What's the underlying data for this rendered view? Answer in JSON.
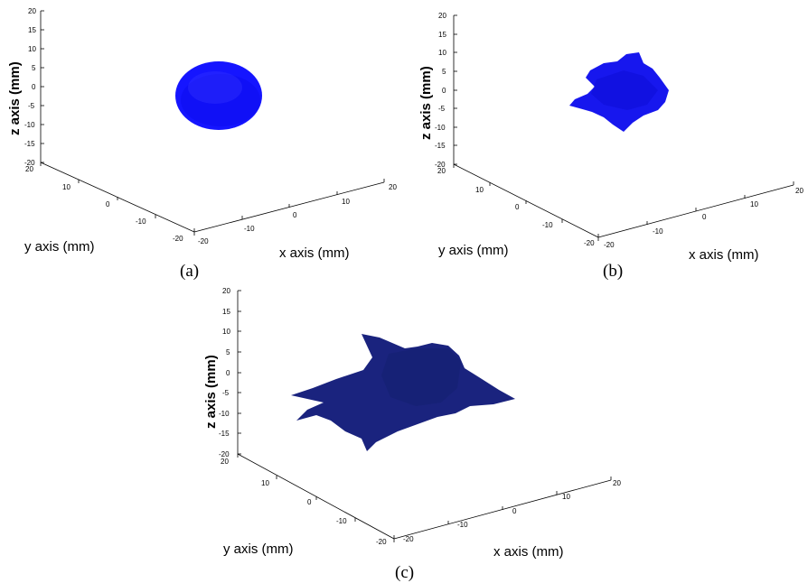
{
  "colors": {
    "panel_a": "#1515ff",
    "panel_b": "#1717ee",
    "panel_c": "#1a237e"
  },
  "chart_data": [
    {
      "type": "scatter",
      "projection": "3d",
      "caption": "(a)",
      "shape": "sphere",
      "marker_color": "#1515ff",
      "xlabel": "x axis (mm)",
      "ylabel": "y axis (mm)",
      "zlabel": "z axis (mm)",
      "xlim": [
        -20,
        20
      ],
      "ylim": [
        -20,
        20
      ],
      "zlim": [
        -20,
        20
      ],
      "xticks": [
        "-20",
        "-10",
        "0",
        "10",
        "20"
      ],
      "yticks": [
        "-20",
        "-10",
        "0",
        "10",
        "20"
      ],
      "zticks": [
        "-20",
        "-15",
        "-10",
        "-5",
        "0",
        "5",
        "10",
        "15",
        "20"
      ],
      "grid": false
    },
    {
      "type": "scatter",
      "projection": "3d",
      "caption": "(b)",
      "shape": "star-shaped point cloud",
      "marker_color": "#1717ee",
      "xlabel": "x axis (mm)",
      "ylabel": "y axis (mm)",
      "zlabel": "z axis (mm)",
      "xlim": [
        -20,
        20
      ],
      "ylim": [
        -20,
        20
      ],
      "zlim": [
        -20,
        20
      ],
      "xticks": [
        "-20",
        "-10",
        "0",
        "10",
        "20"
      ],
      "yticks": [
        "-20",
        "-10",
        "0",
        "10",
        "20"
      ],
      "zticks": [
        "-20",
        "-15",
        "-10",
        "-5",
        "0",
        "5",
        "10",
        "15",
        "20"
      ],
      "grid": false
    },
    {
      "type": "scatter",
      "projection": "3d",
      "caption": "(c)",
      "shape": "large star-shaped point cloud",
      "marker_color": "#1a237e",
      "xlabel": "x axis (mm)",
      "ylabel": "y axis (mm)",
      "zlabel": "z axis (mm)",
      "xlim": [
        -20,
        20
      ],
      "ylim": [
        -20,
        20
      ],
      "zlim": [
        -20,
        20
      ],
      "xticks": [
        "-20",
        "-10",
        "0",
        "10",
        "20"
      ],
      "yticks": [
        "-20",
        "-10",
        "0",
        "10",
        "20"
      ],
      "zticks": [
        "-20",
        "-15",
        "-10",
        "-5",
        "0",
        "5",
        "10",
        "15",
        "20"
      ],
      "grid": false
    }
  ]
}
